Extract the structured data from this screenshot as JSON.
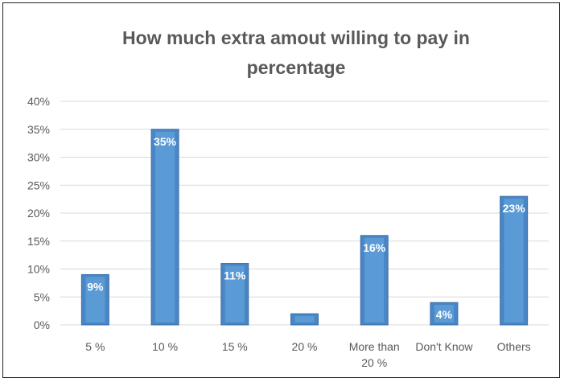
{
  "chart_data": {
    "type": "bar",
    "title_lines": [
      "How much extra amout willing to pay in",
      "percentage"
    ],
    "categories": [
      [
        "5 %"
      ],
      [
        "10 %"
      ],
      [
        "15 %"
      ],
      [
        "20 %"
      ],
      [
        "More than",
        "20 %"
      ],
      [
        "Don't Know"
      ],
      [
        "Others"
      ]
    ],
    "values": [
      9,
      35,
      11,
      2,
      16,
      4,
      23
    ],
    "data_labels": [
      "9%",
      "35%",
      "11%",
      "",
      "16%",
      "4%",
      "23%"
    ],
    "y_ticks": [
      "0%",
      "5%",
      "10%",
      "15%",
      "20%",
      "25%",
      "30%",
      "35%",
      "40%"
    ],
    "ylim": [
      0,
      40
    ],
    "grid": true,
    "legend": "none",
    "colors": {
      "bar": "#4a86c5",
      "bar_edge": "#3a6ea8",
      "bar_inner": "#5b9bd5",
      "grid": "#d9d9d9",
      "text": "#595959"
    }
  }
}
